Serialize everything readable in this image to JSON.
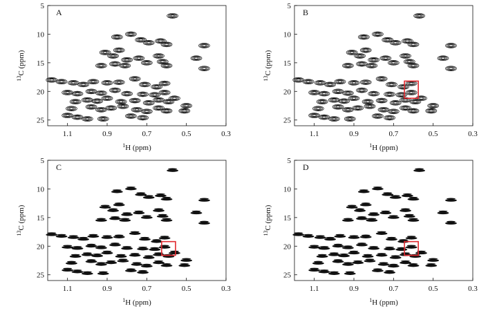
{
  "chart_data": [
    {
      "type": "scatter",
      "panel": "A",
      "style": "contour",
      "xlabel": "¹H (ppm)",
      "ylabel": "¹³C (ppm)",
      "xlim": [
        1.2,
        0.3
      ],
      "ylim": [
        5,
        26
      ],
      "xticks": [
        1.1,
        0.9,
        0.7,
        0.5,
        0.3
      ],
      "yticks": [
        5,
        10,
        15,
        20,
        25
      ],
      "highlight": null,
      "series": [
        {
          "x": [
            0.57,
            0.85,
            0.78,
            0.73,
            0.69,
            0.63,
            0.6,
            0.41,
            0.91,
            0.87,
            0.84,
            0.8,
            0.74,
            0.64,
            0.62,
            0.45,
            0.93,
            0.86,
            0.81,
            0.7,
            0.6,
            0.41,
            1.18,
            1.13,
            1.07,
            1.02,
            0.97,
            0.9,
            0.84,
            0.76,
            0.71,
            0.65,
            0.61,
            1.1,
            1.05,
            0.98,
            0.93,
            0.86,
            0.8,
            0.72,
            0.66,
            0.61,
            0.56,
            1.06,
            1.0,
            0.95,
            0.9,
            0.83,
            0.76,
            0.69,
            0.64,
            0.59,
            0.5,
            1.08,
            0.98,
            0.93,
            0.88,
            0.82,
            0.75,
            0.7,
            0.64,
            0.6,
            0.51,
            1.1,
            1.05,
            1.0,
            0.92,
            0.78,
            0.72
          ],
          "y": [
            6.8,
            10.5,
            10,
            11,
            11.5,
            11.2,
            11.8,
            12,
            13.2,
            13.8,
            12.8,
            14.5,
            14.2,
            13.8,
            14.8,
            14.2,
            15.5,
            15.2,
            15.5,
            15,
            15.5,
            16,
            18,
            18.3,
            18.5,
            18.8,
            18.3,
            18.5,
            18.4,
            17.8,
            18.8,
            19.2,
            18.6,
            20.2,
            20.4,
            20,
            20.3,
            19.8,
            20.4,
            20.5,
            20.6,
            20.2,
            21.2,
            21.8,
            21.5,
            21.7,
            21.2,
            21.8,
            21.6,
            22,
            21.5,
            21.8,
            22.5,
            23,
            22.7,
            23.2,
            22.9,
            22.6,
            23.2,
            23.5,
            22.9,
            23.4,
            23.4,
            24.2,
            24.5,
            24.8,
            24.8,
            24.3,
            24.6
          ]
        }
      ]
    },
    {
      "type": "scatter",
      "panel": "B",
      "style": "contour",
      "xlabel": "¹H (ppm)",
      "ylabel": "¹³C (ppm)",
      "xlim": [
        1.2,
        0.3
      ],
      "ylim": [
        5,
        26
      ],
      "xticks": [
        1.1,
        0.9,
        0.7,
        0.5,
        0.3
      ],
      "yticks": [
        5,
        10,
        15,
        20,
        25
      ],
      "highlight": {
        "x": [
          0.645,
          0.575
        ],
        "y": [
          18.2,
          21.2
        ]
      },
      "series": [
        {
          "x": [
            0.57,
            0.85,
            0.78,
            0.73,
            0.69,
            0.63,
            0.6,
            0.41,
            0.91,
            0.87,
            0.84,
            0.8,
            0.74,
            0.64,
            0.62,
            0.45,
            0.93,
            0.86,
            0.81,
            0.7,
            0.6,
            0.41,
            1.18,
            1.13,
            1.07,
            1.02,
            0.97,
            0.9,
            0.84,
            0.76,
            0.71,
            0.65,
            0.61,
            1.1,
            1.05,
            0.98,
            0.93,
            0.86,
            0.8,
            0.72,
            0.66,
            0.61,
            0.56,
            1.06,
            1.0,
            0.95,
            0.9,
            0.83,
            0.76,
            0.69,
            0.64,
            0.59,
            0.5,
            1.08,
            0.98,
            0.93,
            0.88,
            0.82,
            0.75,
            0.7,
            0.64,
            0.6,
            0.51,
            1.1,
            1.05,
            1.0,
            0.92,
            0.78,
            0.72
          ],
          "y": [
            6.8,
            10.5,
            10,
            11,
            11.5,
            11.2,
            11.8,
            12,
            13.2,
            13.8,
            12.8,
            14.5,
            14.2,
            13.8,
            14.8,
            14.2,
            15.5,
            15.2,
            15.5,
            15,
            15.5,
            16,
            18,
            18.3,
            18.5,
            18.8,
            18.3,
            18.5,
            18.4,
            17.8,
            18.8,
            19.2,
            18.6,
            20.2,
            20.4,
            20,
            20.3,
            19.8,
            20.4,
            20.5,
            20.6,
            20.2,
            21.2,
            21.8,
            21.5,
            21.7,
            21.2,
            21.8,
            21.6,
            22,
            21.5,
            21.8,
            22.5,
            23,
            22.7,
            23.2,
            22.9,
            22.6,
            23.2,
            23.5,
            22.9,
            23.4,
            23.4,
            24.2,
            24.5,
            24.8,
            24.8,
            24.3,
            24.6
          ]
        }
      ]
    },
    {
      "type": "scatter",
      "panel": "C",
      "style": "filled",
      "xlabel": "¹H (ppm)",
      "ylabel": "¹³C (ppm)",
      "xlim": [
        1.2,
        0.3
      ],
      "ylim": [
        5,
        26
      ],
      "xticks": [
        1.1,
        0.9,
        0.7,
        0.5,
        0.3
      ],
      "yticks": [
        5,
        10,
        15,
        20,
        25
      ],
      "highlight": {
        "x": [
          0.625,
          0.555
        ],
        "y": [
          19.2,
          21.6
        ]
      },
      "series": [
        {
          "x": [
            0.57,
            0.85,
            0.78,
            0.73,
            0.69,
            0.63,
            0.6,
            0.41,
            0.91,
            0.87,
            0.84,
            0.8,
            0.74,
            0.64,
            0.62,
            0.45,
            0.93,
            0.86,
            0.81,
            0.7,
            0.6,
            0.41,
            1.18,
            1.13,
            1.07,
            1.02,
            0.97,
            0.9,
            0.84,
            0.76,
            0.71,
            0.65,
            0.61,
            1.1,
            1.05,
            0.98,
            0.93,
            0.86,
            0.8,
            0.72,
            0.66,
            0.61,
            0.56,
            1.06,
            1.0,
            0.95,
            0.9,
            0.83,
            0.76,
            0.69,
            0.64,
            0.59,
            0.5,
            1.08,
            0.98,
            0.93,
            0.88,
            0.82,
            0.75,
            0.7,
            0.64,
            0.6,
            0.51,
            1.1,
            1.05,
            1.0,
            0.92,
            0.78,
            0.72
          ],
          "y": [
            6.8,
            10.5,
            10,
            11,
            11.5,
            11.2,
            11.8,
            12,
            13.2,
            13.8,
            12.8,
            14.5,
            14.2,
            13.8,
            14.8,
            14.2,
            15.5,
            15.2,
            15.5,
            15,
            15.5,
            16,
            18,
            18.3,
            18.5,
            18.8,
            18.3,
            18.5,
            18.4,
            17.8,
            18.8,
            19.2,
            18.6,
            20.2,
            20.4,
            20,
            20.3,
            19.8,
            20.4,
            20.5,
            20.6,
            20.2,
            21.2,
            21.8,
            21.5,
            21.7,
            21.2,
            21.8,
            21.6,
            22,
            21.5,
            21.8,
            22.5,
            23,
            22.7,
            23.2,
            22.9,
            22.6,
            23.2,
            23.5,
            22.9,
            23.4,
            23.4,
            24.2,
            24.5,
            24.8,
            24.8,
            24.3,
            24.6
          ]
        }
      ]
    },
    {
      "type": "scatter",
      "panel": "D",
      "style": "filled",
      "xlabel": "¹H (ppm)",
      "ylabel": "¹³C (ppm)",
      "xlim": [
        1.2,
        0.3
      ],
      "ylim": [
        5,
        26
      ],
      "xticks": [
        1.1,
        0.9,
        0.7,
        0.5,
        0.3
      ],
      "yticks": [
        5,
        10,
        15,
        20,
        25
      ],
      "highlight": {
        "x": [
          0.645,
          0.575
        ],
        "y": [
          19.2,
          21.6
        ]
      },
      "series": [
        {
          "x": [
            0.57,
            0.85,
            0.78,
            0.73,
            0.69,
            0.63,
            0.6,
            0.41,
            0.91,
            0.87,
            0.84,
            0.8,
            0.74,
            0.64,
            0.62,
            0.45,
            0.93,
            0.86,
            0.81,
            0.7,
            0.6,
            0.41,
            1.18,
            1.13,
            1.07,
            1.02,
            0.97,
            0.9,
            0.84,
            0.76,
            0.71,
            0.65,
            0.61,
            1.1,
            1.05,
            0.98,
            0.93,
            0.86,
            0.8,
            0.72,
            0.66,
            0.61,
            0.56,
            1.06,
            1.0,
            0.95,
            0.9,
            0.83,
            0.76,
            0.69,
            0.64,
            0.59,
            0.5,
            1.08,
            0.98,
            0.93,
            0.88,
            0.82,
            0.75,
            0.7,
            0.64,
            0.6,
            0.51,
            1.1,
            1.05,
            1.0,
            0.92,
            0.78,
            0.72
          ],
          "y": [
            6.8,
            10.5,
            10,
            11,
            11.5,
            11.2,
            11.8,
            12,
            13.2,
            13.8,
            12.8,
            14.5,
            14.2,
            13.8,
            14.8,
            14.2,
            15.5,
            15.2,
            15.5,
            15,
            15.5,
            16,
            18,
            18.3,
            18.5,
            18.8,
            18.3,
            18.5,
            18.4,
            17.8,
            18.8,
            19.2,
            18.6,
            20.2,
            20.4,
            20,
            20.3,
            19.8,
            20.4,
            20.5,
            20.6,
            20.2,
            21.2,
            21.8,
            21.5,
            21.7,
            21.2,
            21.8,
            21.6,
            22,
            21.5,
            21.8,
            22.5,
            23,
            22.7,
            23.2,
            22.9,
            22.6,
            23.2,
            23.5,
            22.9,
            23.4,
            23.4,
            24.2,
            24.5,
            24.8,
            24.8,
            24.3,
            24.6
          ]
        }
      ]
    }
  ],
  "colors": {
    "ink": "#111111",
    "highlight": "#e0282e",
    "background": "#ffffff"
  }
}
